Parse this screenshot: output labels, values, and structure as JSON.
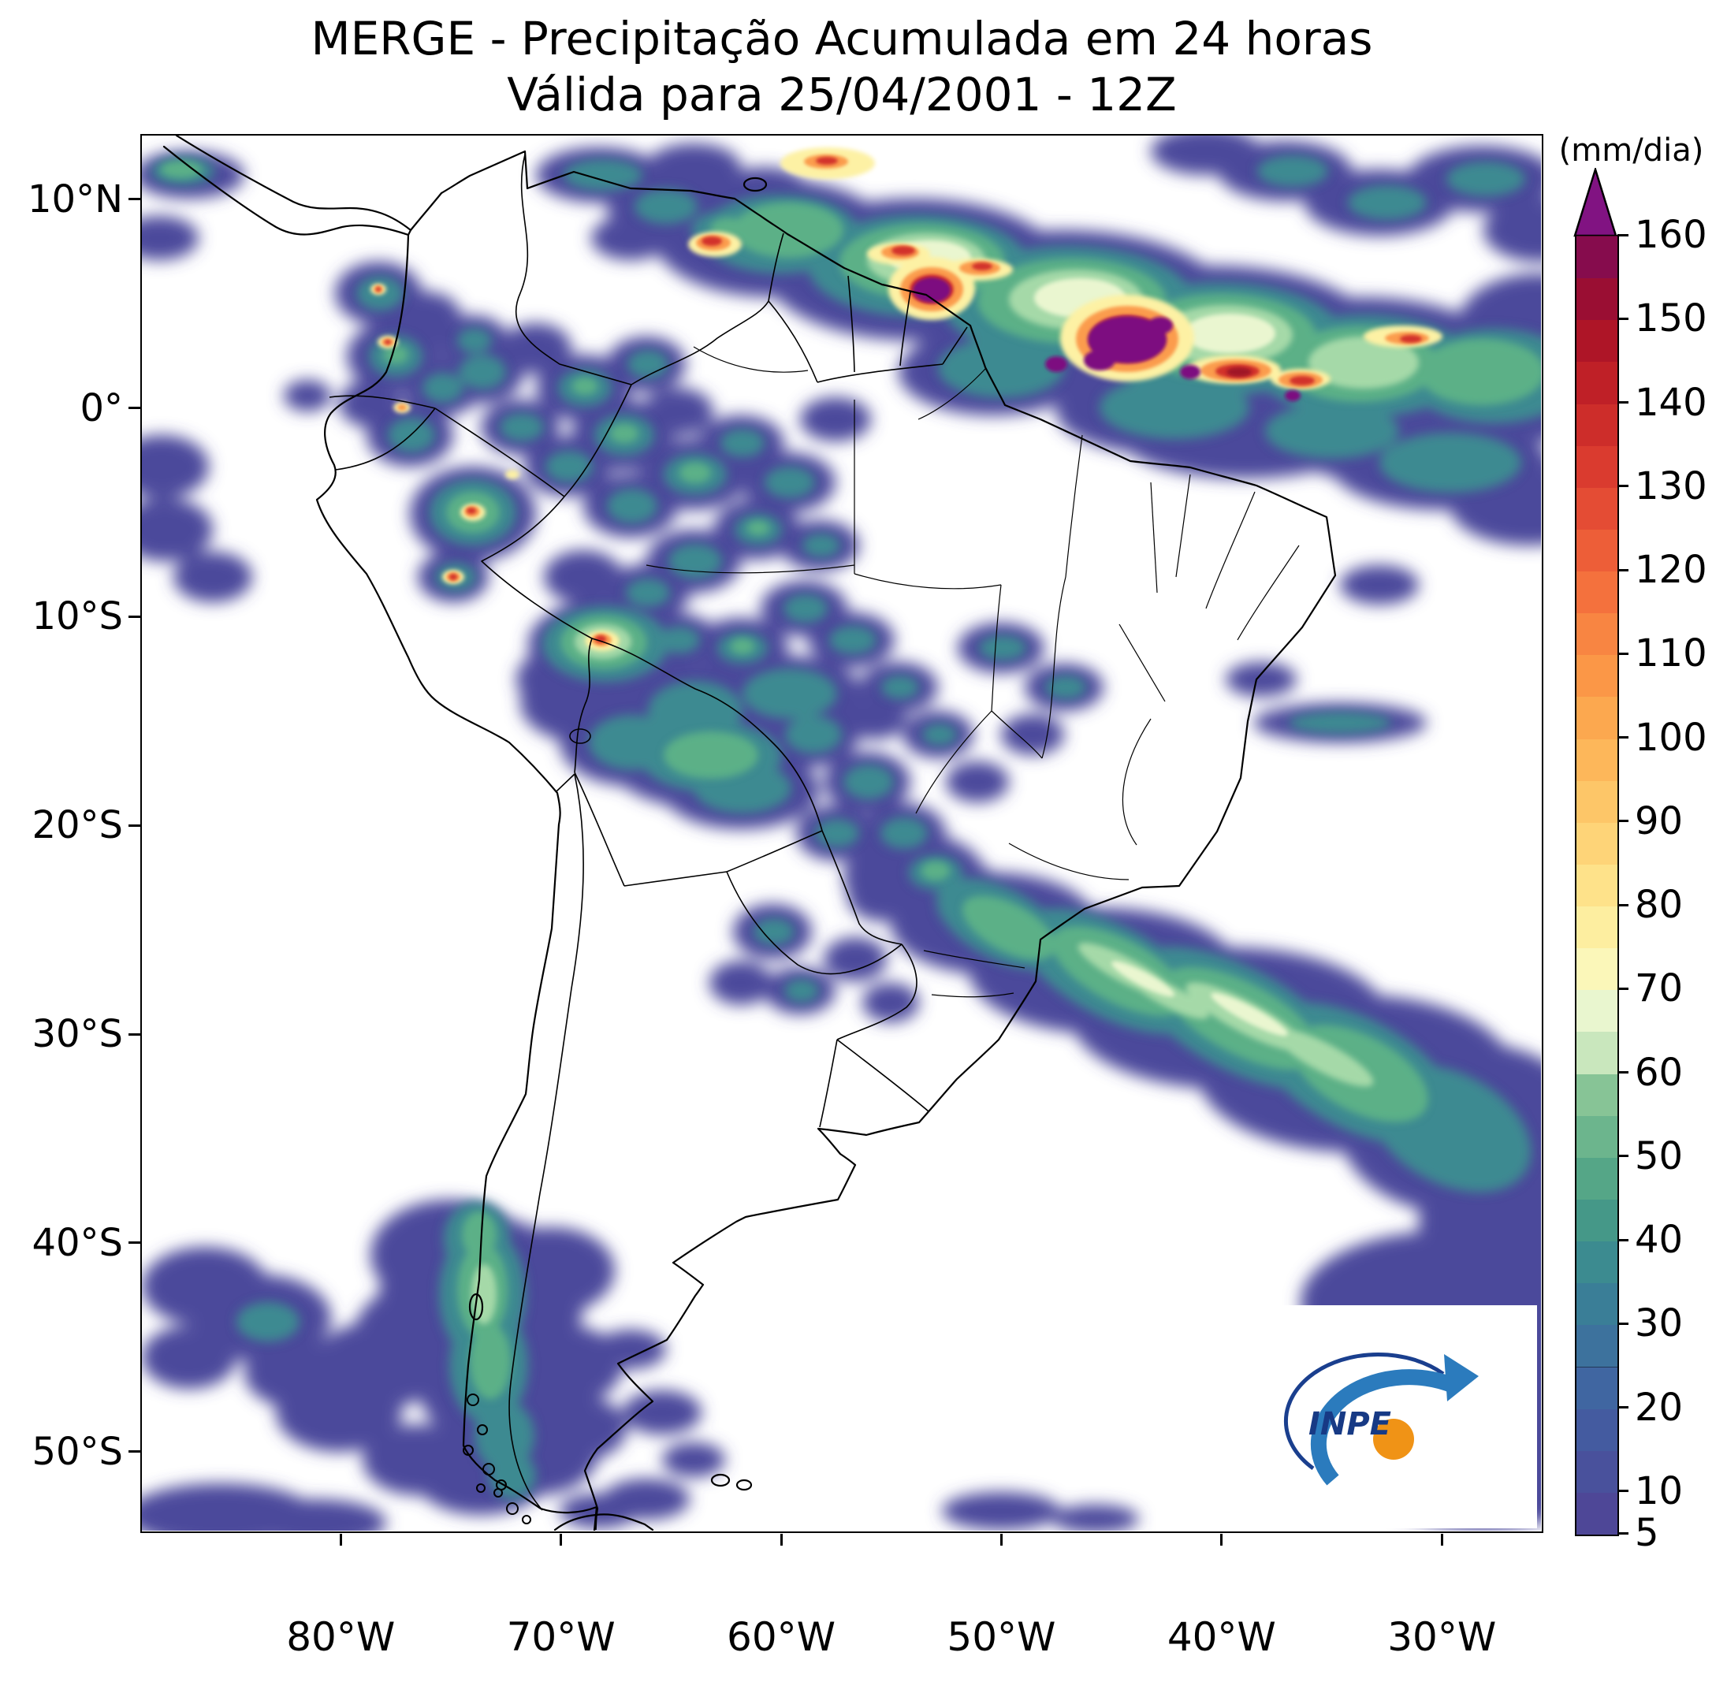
{
  "title": {
    "line1": "MERGE - Precipitação Acumulada em 24 horas",
    "line2": "Válida para 25/04/2001 - 12Z"
  },
  "axes": {
    "y_ticks": [
      {
        "label": "10°N",
        "lat": 10
      },
      {
        "label": "0°",
        "lat": 0
      },
      {
        "label": "10°S",
        "lat": -10
      },
      {
        "label": "20°S",
        "lat": -20
      },
      {
        "label": "30°S",
        "lat": -30
      },
      {
        "label": "40°S",
        "lat": -40
      },
      {
        "label": "50°S",
        "lat": -50
      }
    ],
    "x_ticks": [
      {
        "label": "80°W",
        "lon": -80
      },
      {
        "label": "70°W",
        "lon": -70
      },
      {
        "label": "60°W",
        "lon": -60
      },
      {
        "label": "50°W",
        "lon": -50
      },
      {
        "label": "40°W",
        "lon": -40
      },
      {
        "label": "30°W",
        "lon": -30
      }
    ]
  },
  "colorbar": {
    "unit": "(mm/dia)",
    "min": 5,
    "max": 160,
    "overflow_color": "#811382",
    "ticks": [
      160,
      150,
      140,
      130,
      120,
      110,
      100,
      90,
      80,
      70,
      60,
      50,
      40,
      30,
      20,
      10,
      5
    ],
    "segments": [
      {
        "from": 5,
        "to": 10,
        "color": "#4e4797"
      },
      {
        "from": 10,
        "to": 15,
        "color": "#49519c"
      },
      {
        "from": 15,
        "to": 20,
        "color": "#445ba0"
      },
      {
        "from": 20,
        "to": 25,
        "color": "#4066a1"
      },
      {
        "from": 25,
        "to": 30,
        "color": "#3d729d"
      },
      {
        "from": 30,
        "to": 35,
        "color": "#3a7e97"
      },
      {
        "from": 35,
        "to": 40,
        "color": "#3c8b90"
      },
      {
        "from": 40,
        "to": 45,
        "color": "#459888"
      },
      {
        "from": 45,
        "to": 50,
        "color": "#55a687"
      },
      {
        "from": 50,
        "to": 55,
        "color": "#6cb58d"
      },
      {
        "from": 55,
        "to": 60,
        "color": "#87c496"
      },
      {
        "from": 60,
        "to": 65,
        "color": "#c9e7bd"
      },
      {
        "from": 65,
        "to": 70,
        "color": "#e9f6cf"
      },
      {
        "from": 70,
        "to": 75,
        "color": "#fbf7b9"
      },
      {
        "from": 75,
        "to": 80,
        "color": "#fdeea0"
      },
      {
        "from": 80,
        "to": 85,
        "color": "#fee28a"
      },
      {
        "from": 85,
        "to": 90,
        "color": "#fed478"
      },
      {
        "from": 90,
        "to": 95,
        "color": "#fdc668"
      },
      {
        "from": 95,
        "to": 100,
        "color": "#fdb75a"
      },
      {
        "from": 100,
        "to": 105,
        "color": "#fca84f"
      },
      {
        "from": 105,
        "to": 110,
        "color": "#fb9747"
      },
      {
        "from": 110,
        "to": 115,
        "color": "#f88542"
      },
      {
        "from": 115,
        "to": 120,
        "color": "#f4713d"
      },
      {
        "from": 120,
        "to": 125,
        "color": "#ed5e38"
      },
      {
        "from": 125,
        "to": 130,
        "color": "#e44c34"
      },
      {
        "from": 130,
        "to": 135,
        "color": "#da3b2f"
      },
      {
        "from": 135,
        "to": 140,
        "color": "#cd2d2a"
      },
      {
        "from": 140,
        "to": 145,
        "color": "#bf2027"
      },
      {
        "from": 145,
        "to": 150,
        "color": "#ae1527"
      },
      {
        "from": 150,
        "to": 155,
        "color": "#9a0e33"
      },
      {
        "from": 155,
        "to": 160,
        "color": "#860c4d"
      }
    ]
  },
  "logo": {
    "label": "INPE"
  }
}
